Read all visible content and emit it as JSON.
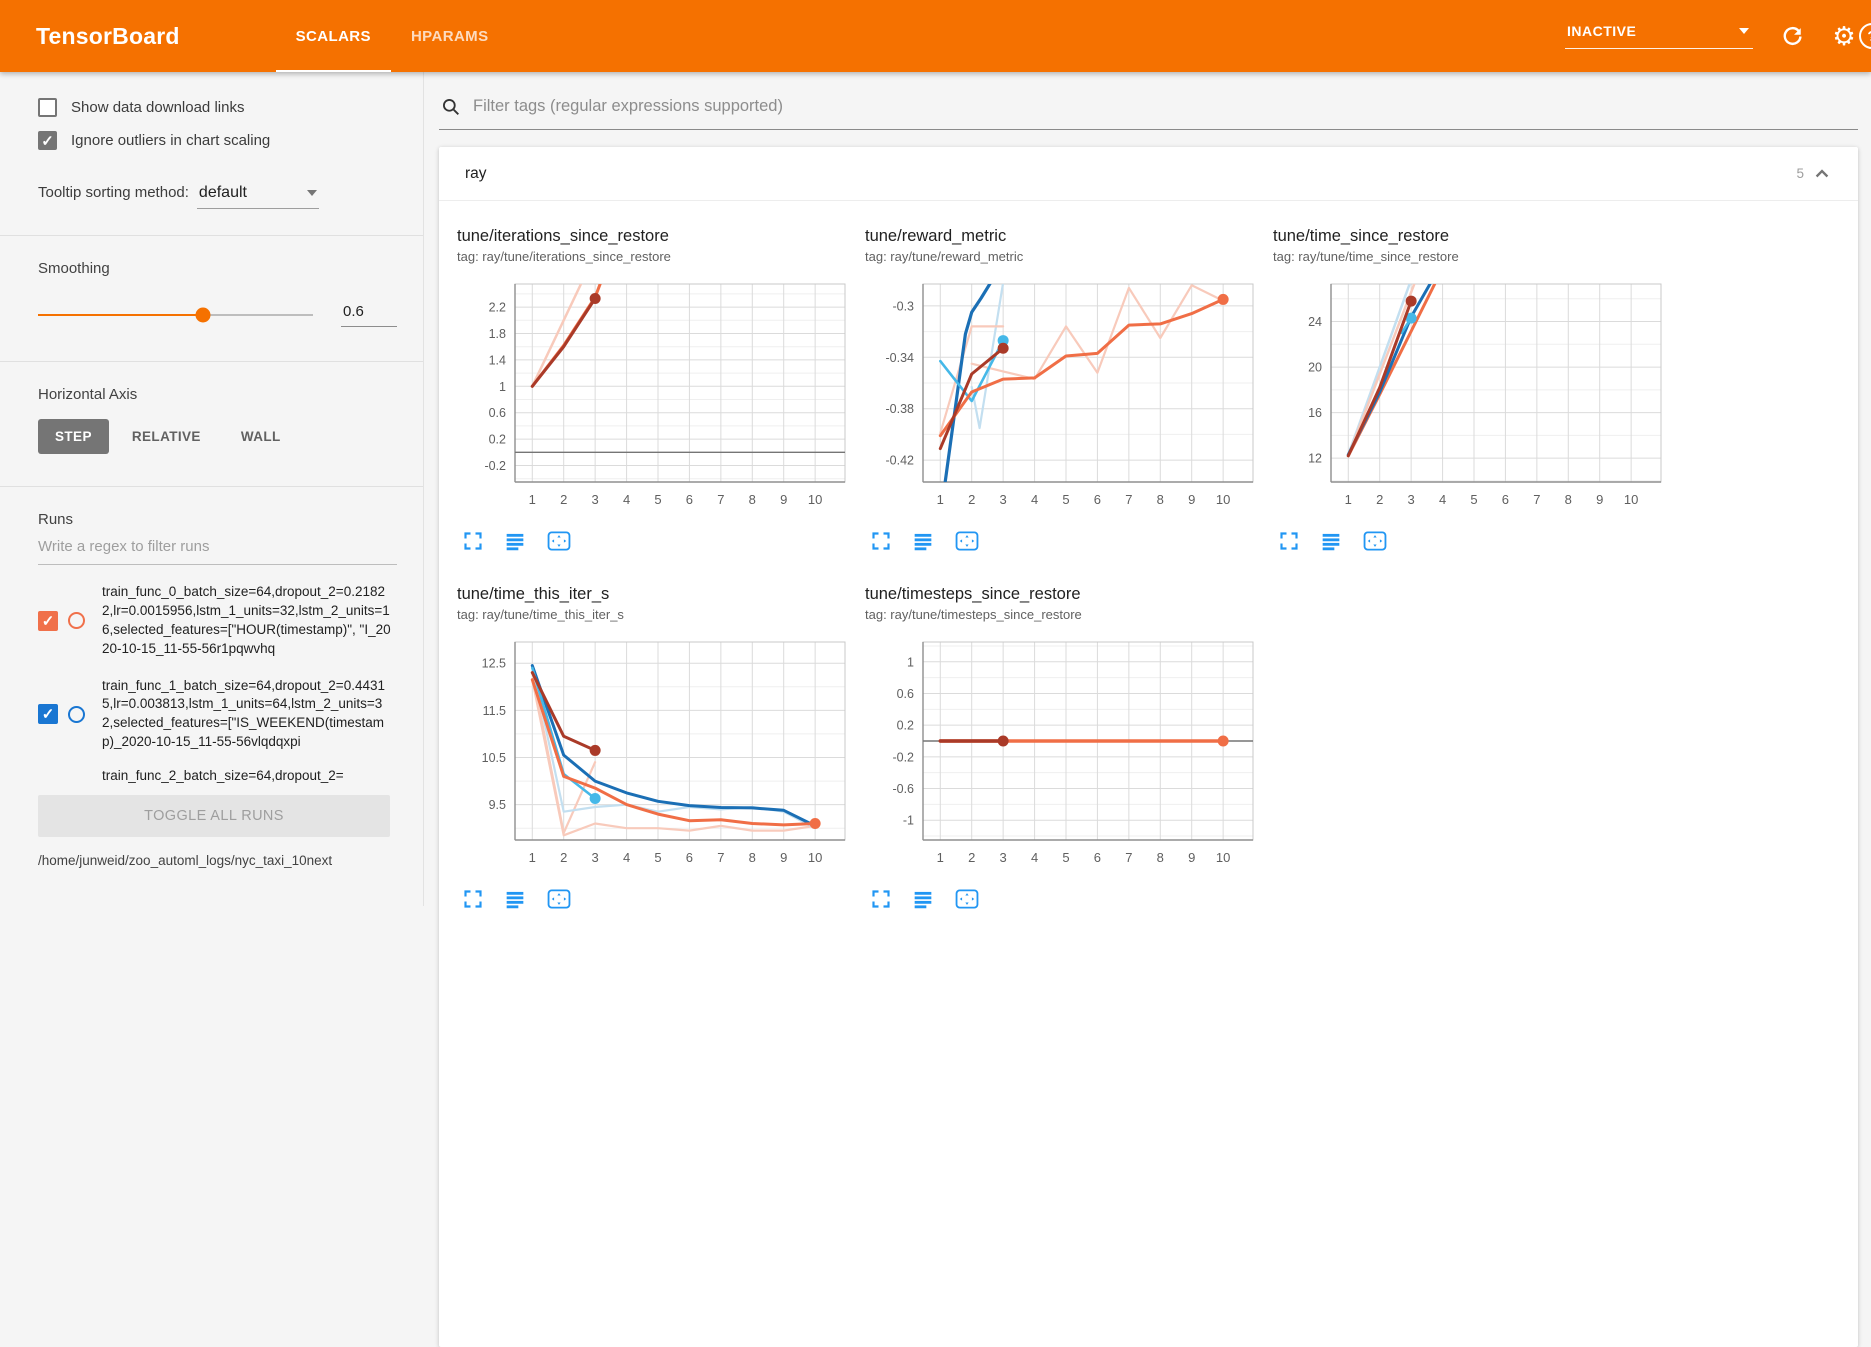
{
  "header": {
    "title": "TensorBoard",
    "tabs": [
      {
        "label": "SCALARS"
      },
      {
        "label": "HPARAMS"
      }
    ],
    "status": "INACTIVE",
    "help_glyph": "?"
  },
  "icons": {
    "checkmark": "✓",
    "gear": "⚙"
  },
  "colors": {
    "header_bg": "#f57100",
    "accent_orange": "#f57100",
    "run_orange": "#f0704a",
    "run_blue": "#1976d2",
    "icon_blue": "#2196f3"
  },
  "sidebar": {
    "checkboxes": [
      {
        "label": "Show data download links",
        "checked": false
      },
      {
        "label": "Ignore outliers in chart scaling",
        "checked": true
      }
    ],
    "tooltip_sorting": {
      "label": "Tooltip sorting method:",
      "value": "default"
    },
    "smoothing": {
      "label": "Smoothing",
      "value": "0.6"
    },
    "horizontal_axis": {
      "label": "Horizontal Axis",
      "options": [
        "STEP",
        "RELATIVE",
        "WALL"
      ],
      "selected": "STEP"
    },
    "runs": {
      "label": "Runs",
      "filter_placeholder": "Write a regex to filter runs",
      "items": [
        {
          "text": "train_func_0_batch_size=64,dropout_2=0.21822,lr=0.0015956,lstm_1_units=32,lstm_2_units=16,selected_features=[\"HOUR(timestamp)\", \"I_2020-10-15_11-55-56r1pqwvhq",
          "color": "#f0704a",
          "checked": true
        },
        {
          "text": "train_func_1_batch_size=64,dropout_2=0.44315,lr=0.003813,lstm_1_units=64,lstm_2_units=32,selected_features=[\"IS_WEEKEND(timestamp)_2020-10-15_11-55-56vlqdqxpi",
          "color": "#1976d2",
          "checked": true
        },
        {
          "text": "train_func_2_batch_size=64,dropout_2=",
          "color": "",
          "partial": true
        }
      ],
      "toggle_all_label": "TOGGLE ALL RUNS",
      "log_path": "/home/junweid/zoo_automl_logs/nyc_taxi_10next"
    }
  },
  "main": {
    "filter_placeholder": "Filter tags (regular expressions supported)",
    "section": {
      "name": "ray",
      "count": "5"
    }
  },
  "chart_data": [
    {
      "type": "line",
      "title": "tune/iterations_since_restore",
      "tag": "tag: ray/tune/iterations_since_restore",
      "xlim": [
        0.45,
        10.95
      ],
      "ylim": [
        -0.45,
        2.55
      ],
      "xticks": [
        1,
        2,
        3,
        4,
        5,
        6,
        7,
        8,
        9,
        10
      ],
      "yticks": [
        2.2,
        1.8,
        1.4,
        1,
        0.6,
        0.2,
        -0.2
      ],
      "series": [
        {
          "name": "zero-line",
          "color": "#757575",
          "w": 1.4,
          "pts": [
            [
              0.45,
              0
            ],
            [
              10.95,
              0
            ]
          ]
        },
        {
          "name": "run0-unsmoothed",
          "color": "#f8cabb",
          "w": 2.5,
          "pts": [
            [
              1,
              1
            ],
            [
              3,
              3
            ]
          ]
        },
        {
          "name": "run2-smoothed",
          "color": "#f06e46",
          "w": 3,
          "pts": [
            [
              1,
              1
            ],
            [
              2,
              1.62
            ],
            [
              3,
              2.35
            ],
            [
              3.6,
              3.1
            ]
          ]
        },
        {
          "name": "run0-smoothed",
          "color": "#aa3a28",
          "w": 3,
          "pts": [
            [
              1,
              1
            ],
            [
              2,
              1.6
            ],
            [
              3,
              2.33
            ]
          ],
          "dot": [
            3,
            2.33
          ]
        }
      ]
    },
    {
      "type": "line",
      "title": "tune/reward_metric",
      "tag": "tag: ray/tune/reward_metric",
      "xlim": [
        0.45,
        10.95
      ],
      "ylim": [
        -0.437,
        -0.283
      ],
      "xticks": [
        1,
        2,
        3,
        4,
        5,
        6,
        7,
        8,
        9,
        10
      ],
      "yticks": [
        -0.3,
        -0.34,
        -0.38,
        -0.42
      ],
      "series": [
        {
          "name": "run1-unsmoothed",
          "color": "#c3dff0",
          "w": 2.2,
          "pts": [
            [
              2,
              -0.363
            ],
            [
              2.25,
              -0.395
            ],
            [
              3,
              -0.282
            ]
          ]
        },
        {
          "name": "run0-unsmoothed",
          "color": "#f8cabb",
          "w": 2.2,
          "pts": [
            [
              1,
              -0.399
            ],
            [
              2,
              -0.316
            ],
            [
              3,
              -0.316
            ]
          ]
        },
        {
          "name": "run2-unsmoothed",
          "color": "#f8cabb",
          "w": 2.2,
          "pts": [
            [
              2,
              -0.345
            ],
            [
              3,
              -0.351
            ],
            [
              4,
              -0.357
            ],
            [
              5,
              -0.316
            ],
            [
              6,
              -0.352
            ],
            [
              7,
              -0.286
            ],
            [
              8,
              -0.325
            ],
            [
              9,
              -0.284
            ],
            [
              10,
              -0.296
            ]
          ]
        },
        {
          "name": "run1-smoothed",
          "color": "#1b6fb5",
          "w": 3.2,
          "pts": [
            [
              1.15,
              -0.438
            ],
            [
              1.8,
              -0.322
            ],
            [
              2,
              -0.305
            ],
            [
              2.3,
              -0.294
            ],
            [
              2.6,
              -0.282
            ]
          ]
        },
        {
          "name": "run1-secondary",
          "color": "#45b8e8",
          "w": 2.6,
          "pts": [
            [
              1,
              -0.343
            ],
            [
              2,
              -0.374
            ],
            [
              3,
              -0.327
            ]
          ],
          "dot": [
            3,
            -0.327
          ]
        },
        {
          "name": "run2-smoothed",
          "color": "#f06e46",
          "w": 3,
          "pts": [
            [
              1,
              -0.401
            ],
            [
              2,
              -0.367
            ],
            [
              3,
              -0.357
            ],
            [
              4,
              -0.356
            ],
            [
              5,
              -0.339
            ],
            [
              6,
              -0.337
            ],
            [
              7,
              -0.315
            ],
            [
              8,
              -0.314
            ],
            [
              9,
              -0.306
            ],
            [
              10,
              -0.295
            ]
          ],
          "dot": [
            10,
            -0.295
          ]
        },
        {
          "name": "run0-smoothed",
          "color": "#aa3a28",
          "w": 3,
          "pts": [
            [
              1,
              -0.411
            ],
            [
              2,
              -0.353
            ],
            [
              3,
              -0.333
            ]
          ],
          "dot": [
            3,
            -0.333
          ]
        }
      ]
    },
    {
      "type": "line",
      "title": "tune/time_since_restore",
      "tag": "tag: ray/tune/time_since_restore",
      "xlim": [
        0.45,
        10.95
      ],
      "ylim": [
        9.9,
        27.3
      ],
      "xticks": [
        1,
        2,
        3,
        4,
        5,
        6,
        7,
        8,
        9,
        10
      ],
      "yticks": [
        24,
        20,
        16,
        12
      ],
      "series": [
        {
          "name": "run1-unsmoothed",
          "color": "#c3dff0",
          "w": 2.5,
          "pts": [
            [
              1,
              12.3
            ],
            [
              2.95,
              27.3
            ]
          ]
        },
        {
          "name": "run0-unsmoothed",
          "color": "#f8cabb",
          "w": 2.5,
          "pts": [
            [
              1,
              12.2
            ],
            [
              3.1,
              27.3
            ]
          ]
        },
        {
          "name": "run2-smoothed",
          "color": "#f06e46",
          "w": 3,
          "pts": [
            [
              1,
              12.2
            ],
            [
              2,
              17.6
            ],
            [
              3.75,
              27.3
            ]
          ]
        },
        {
          "name": "run1-smoothed",
          "color": "#1b6fb5",
          "w": 3,
          "pts": [
            [
              1,
              12.3
            ],
            [
              2,
              17.8
            ],
            [
              3,
              24.4
            ],
            [
              3.6,
              27.3
            ]
          ]
        },
        {
          "name": "run1-secondary",
          "color": "#45b8e8",
          "w": 2.6,
          "pts": [
            [
              2.7,
              23
            ],
            [
              3,
              24.3
            ]
          ],
          "dot": [
            3,
            24.3
          ]
        },
        {
          "name": "run0-smoothed",
          "color": "#aa3a28",
          "w": 3,
          "pts": [
            [
              1,
              12.2
            ],
            [
              2,
              18.2
            ],
            [
              3,
              25.8
            ]
          ],
          "dot": [
            3,
            25.8
          ]
        }
      ]
    },
    {
      "type": "line",
      "title": "tune/time_this_iter_s",
      "tag": "tag: ray/tune/time_this_iter_s",
      "xlim": [
        0.45,
        10.95
      ],
      "ylim": [
        8.75,
        12.95
      ],
      "xticks": [
        1,
        2,
        3,
        4,
        5,
        6,
        7,
        8,
        9,
        10
      ],
      "yticks": [
        12.5,
        11.5,
        10.5,
        9.5
      ],
      "series": [
        {
          "name": "run0-unsmoothed",
          "color": "#f8cabb",
          "w": 2.2,
          "pts": [
            [
              1,
              12.3
            ],
            [
              2,
              8.9
            ],
            [
              3,
              10.4
            ]
          ]
        },
        {
          "name": "run2-unsmoothed",
          "color": "#f8cabb",
          "w": 2.2,
          "pts": [
            [
              1,
              12.15
            ],
            [
              2,
              8.85
            ],
            [
              3,
              9.1
            ],
            [
              4,
              9.0
            ],
            [
              5,
              9.0
            ],
            [
              6,
              8.95
            ],
            [
              7,
              9.05
            ],
            [
              8,
              8.95
            ],
            [
              9,
              8.95
            ],
            [
              10,
              9.05
            ]
          ]
        },
        {
          "name": "run1-unsmoothed",
          "color": "#c3dff0",
          "w": 2.2,
          "pts": [
            [
              1,
              12.45
            ],
            [
              2,
              9.35
            ],
            [
              3,
              9.45
            ],
            [
              4,
              9.5
            ],
            [
              5,
              9.35
            ],
            [
              6,
              9.45
            ],
            [
              7,
              9.4
            ],
            [
              8,
              9.45
            ],
            [
              9,
              9.35
            ],
            [
              10,
              9.0
            ]
          ]
        },
        {
          "name": "run1-smoothed",
          "color": "#1b6fb5",
          "w": 3,
          "pts": [
            [
              1,
              12.45
            ],
            [
              2,
              10.55
            ],
            [
              3,
              10.0
            ],
            [
              4,
              9.75
            ],
            [
              5,
              9.57
            ],
            [
              6,
              9.48
            ],
            [
              7,
              9.44
            ],
            [
              8,
              9.43
            ],
            [
              9,
              9.38
            ],
            [
              10,
              9.05
            ]
          ]
        },
        {
          "name": "run1-secondary",
          "color": "#45b8e8",
          "w": 2.6,
          "pts": [
            [
              1,
              12.4
            ],
            [
              2,
              10.15
            ],
            [
              3,
              9.63
            ]
          ],
          "dot": [
            3,
            9.63
          ]
        },
        {
          "name": "run2-smoothed",
          "color": "#f06e46",
          "w": 3,
          "pts": [
            [
              1,
              12.15
            ],
            [
              2,
              10.1
            ],
            [
              3,
              9.85
            ],
            [
              4,
              9.5
            ],
            [
              5,
              9.3
            ],
            [
              6,
              9.16
            ],
            [
              7,
              9.18
            ],
            [
              8,
              9.1
            ],
            [
              9,
              9.07
            ],
            [
              10,
              9.1
            ]
          ],
          "dot": [
            10,
            9.1
          ]
        },
        {
          "name": "run0-smoothed",
          "color": "#aa3a28",
          "w": 3,
          "pts": [
            [
              1,
              12.3
            ],
            [
              2,
              10.95
            ],
            [
              3,
              10.65
            ]
          ],
          "dot": [
            3,
            10.65
          ]
        }
      ]
    },
    {
      "type": "line",
      "title": "tune/timesteps_since_restore",
      "tag": "tag: ray/tune/timesteps_since_restore",
      "xlim": [
        0.45,
        10.95
      ],
      "ylim": [
        -1.25,
        1.25
      ],
      "xticks": [
        1,
        2,
        3,
        4,
        5,
        6,
        7,
        8,
        9,
        10
      ],
      "yticks": [
        1,
        0.6,
        0.2,
        -0.2,
        -0.6,
        -1
      ],
      "series": [
        {
          "name": "zero-line",
          "color": "#757575",
          "w": 1.4,
          "pts": [
            [
              0.45,
              0
            ],
            [
              10.95,
              0
            ]
          ]
        },
        {
          "name": "run2-smoothed",
          "color": "#f06e46",
          "w": 3.4,
          "pts": [
            [
              1,
              0
            ],
            [
              10,
              0
            ]
          ],
          "dot": [
            10,
            0
          ]
        },
        {
          "name": "run0-smoothed",
          "color": "#aa3a28",
          "w": 3.4,
          "pts": [
            [
              1,
              0
            ],
            [
              3,
              0
            ]
          ],
          "dot": [
            3,
            0
          ]
        }
      ]
    }
  ]
}
